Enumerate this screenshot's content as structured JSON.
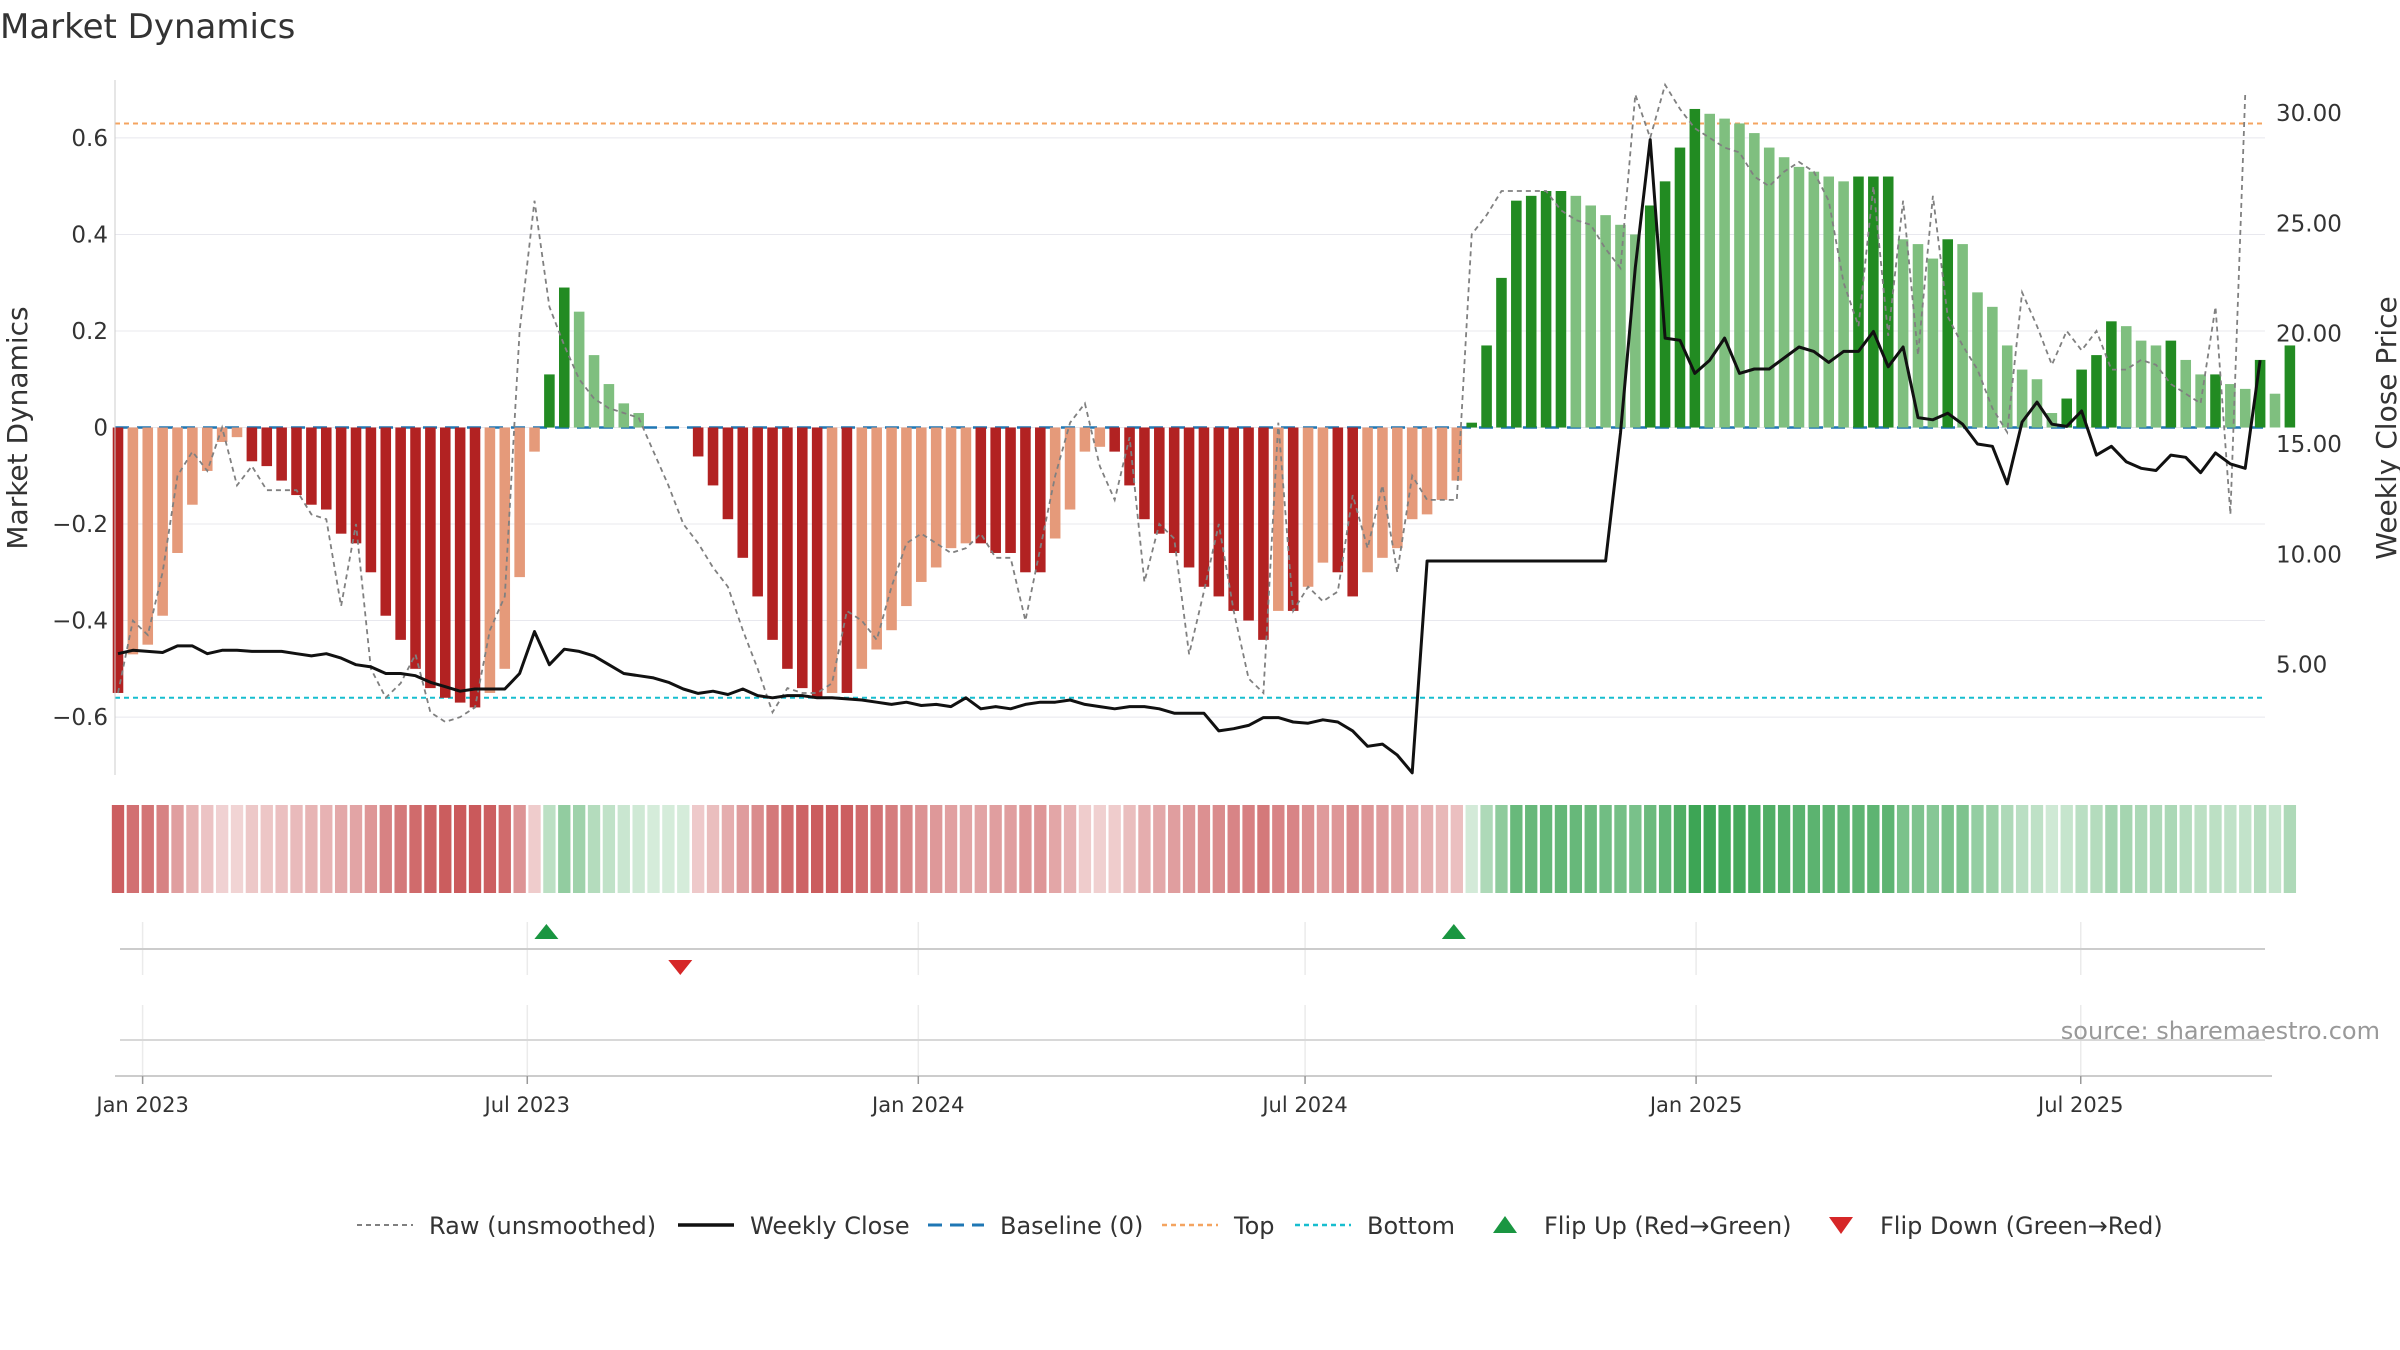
{
  "chart_data": {
    "type": "bar",
    "title": "Market Dynamics",
    "ylabel_left": "Market Dynamics",
    "ylabel_right": "Weekly Close Price",
    "ylim_left": [
      -0.72,
      0.72
    ],
    "ylim_right": [
      0,
      31.5
    ],
    "yticks_left": [
      "0.6",
      "0.4",
      "0.2",
      "0",
      "−0.2",
      "−0.4",
      "−0.6"
    ],
    "yticks_right": [
      "30.00",
      "25.00",
      "20.00",
      "15.00",
      "10.00",
      "5.00"
    ],
    "x_start": "2022-12-19",
    "x_end": "2025-09-29",
    "x_ticks": [
      {
        "date": "2023-01-01",
        "label": "Jan 2023"
      },
      {
        "date": "2023-07-01",
        "label": "Jul 2023"
      },
      {
        "date": "2024-01-01",
        "label": "Jan 2024"
      },
      {
        "date": "2024-07-01",
        "label": "Jul 2024"
      },
      {
        "date": "2025-01-01",
        "label": "Jan 2025"
      },
      {
        "date": "2025-07-01",
        "label": "Jul 2025"
      }
    ],
    "top_line": 0.63,
    "bottom_line": -0.56,
    "baseline": 0,
    "momentum": [
      -0.55,
      -0.47,
      -0.45,
      -0.39,
      -0.26,
      -0.16,
      -0.09,
      -0.03,
      -0.02,
      -0.07,
      -0.08,
      -0.11,
      -0.14,
      -0.16,
      -0.17,
      -0.22,
      -0.24,
      -0.3,
      -0.39,
      -0.44,
      -0.5,
      -0.54,
      -0.56,
      -0.57,
      -0.58,
      -0.55,
      -0.5,
      -0.31,
      -0.05,
      0.11,
      0.29,
      0.24,
      0.15,
      0.09,
      0.05,
      0.03,
      0.0,
      0.0,
      0.0,
      -0.06,
      -0.12,
      -0.19,
      -0.27,
      -0.35,
      -0.44,
      -0.5,
      -0.54,
      -0.56,
      -0.55,
      -0.55,
      -0.5,
      -0.46,
      -0.42,
      -0.37,
      -0.32,
      -0.29,
      -0.25,
      -0.24,
      -0.24,
      -0.26,
      -0.26,
      -0.3,
      -0.3,
      -0.23,
      -0.17,
      -0.05,
      -0.04,
      -0.05,
      -0.12,
      -0.19,
      -0.22,
      -0.26,
      -0.29,
      -0.33,
      -0.35,
      -0.38,
      -0.4,
      -0.44,
      -0.38,
      -0.38,
      -0.33,
      -0.28,
      -0.3,
      -0.35,
      -0.3,
      -0.27,
      -0.25,
      -0.19,
      -0.18,
      -0.15,
      -0.11,
      0.01,
      0.17,
      0.31,
      0.47,
      0.48,
      0.49,
      0.49,
      0.48,
      0.46,
      0.44,
      0.42,
      0.4,
      0.46,
      0.51,
      0.58,
      0.66,
      0.65,
      0.64,
      0.63,
      0.61,
      0.58,
      0.56,
      0.54,
      0.53,
      0.52,
      0.51,
      0.52,
      0.52,
      0.52,
      0.39,
      0.38,
      0.35,
      0.39,
      0.38,
      0.28,
      0.25,
      0.17,
      0.12,
      0.1,
      0.03,
      0.06,
      0.12,
      0.15,
      0.22,
      0.21,
      0.18,
      0.17,
      0.18,
      0.14,
      0.11,
      0.11,
      0.09,
      0.08,
      0.14,
      0.07,
      0.17
    ],
    "raw": [
      -0.55,
      -0.4,
      -0.43,
      -0.3,
      -0.1,
      -0.05,
      -0.09,
      0.0,
      -0.12,
      -0.08,
      -0.13,
      -0.13,
      -0.13,
      -0.18,
      -0.19,
      -0.37,
      -0.2,
      -0.5,
      -0.56,
      -0.53,
      -0.47,
      -0.59,
      -0.61,
      -0.6,
      -0.58,
      -0.42,
      -0.35,
      0.2,
      0.47,
      0.25,
      0.17,
      0.1,
      0.06,
      0.04,
      0.03,
      0.02,
      -0.05,
      -0.12,
      -0.2,
      -0.24,
      -0.29,
      -0.33,
      -0.42,
      -0.5,
      -0.59,
      -0.54,
      -0.55,
      -0.55,
      -0.53,
      -0.38,
      -0.4,
      -0.44,
      -0.33,
      -0.24,
      -0.22,
      -0.24,
      -0.26,
      -0.25,
      -0.22,
      -0.27,
      -0.27,
      -0.4,
      -0.25,
      -0.1,
      0.01,
      0.05,
      -0.08,
      -0.15,
      -0.02,
      -0.32,
      -0.2,
      -0.23,
      -0.47,
      -0.34,
      -0.2,
      -0.38,
      -0.52,
      -0.55,
      0.01,
      -0.38,
      -0.33,
      -0.36,
      -0.34,
      -0.14,
      -0.25,
      -0.12,
      -0.3,
      -0.1,
      -0.15,
      -0.15,
      -0.15,
      0.4,
      0.44,
      0.49,
      0.49,
      0.49,
      0.49,
      0.45,
      0.43,
      0.42,
      0.37,
      0.33,
      0.69,
      0.6,
      0.71,
      0.66,
      0.62,
      0.6,
      0.58,
      0.57,
      0.52,
      0.5,
      0.53,
      0.55,
      0.53,
      0.47,
      0.3,
      0.21,
      0.5,
      0.19,
      0.47,
      0.15,
      0.48,
      0.23,
      0.17,
      0.12,
      0.04,
      -0.01,
      0.28,
      0.21,
      0.13,
      0.2,
      0.16,
      0.2,
      0.12,
      0.12,
      0.14,
      0.13,
      0.09,
      0.07,
      0.05,
      0.25,
      -0.18,
      0.69
    ],
    "weekly_close": [
      5.5,
      5.65,
      5.6,
      5.55,
      5.85,
      5.85,
      5.5,
      5.65,
      5.65,
      5.6,
      5.6,
      5.6,
      5.5,
      5.4,
      5.5,
      5.3,
      5.0,
      4.9,
      4.6,
      4.6,
      4.5,
      4.2,
      4.0,
      3.8,
      3.9,
      3.9,
      3.9,
      4.6,
      6.5,
      5.0,
      5.7,
      5.6,
      5.4,
      5.0,
      4.6,
      4.5,
      4.4,
      4.2,
      3.9,
      3.7,
      3.8,
      3.65,
      3.9,
      3.6,
      3.5,
      3.6,
      3.6,
      3.5,
      3.5,
      3.45,
      3.4,
      3.3,
      3.2,
      3.3,
      3.15,
      3.2,
      3.1,
      3.5,
      3.0,
      3.1,
      3.0,
      3.2,
      3.3,
      3.3,
      3.4,
      3.2,
      3.1,
      3.0,
      3.1,
      3.1,
      3.0,
      2.8,
      2.8,
      2.8,
      2.0,
      2.1,
      2.25,
      2.6,
      2.6,
      2.4,
      2.35,
      2.5,
      2.4,
      2.0,
      1.3,
      1.4,
      0.9,
      0.1,
      9.7,
      9.7,
      9.7,
      9.7,
      9.7,
      9.7,
      9.7,
      9.7,
      9.7,
      9.7,
      9.7,
      9.7,
      9.7,
      15.5,
      23.0,
      28.8,
      19.8,
      19.7,
      18.2,
      18.8,
      19.8,
      18.2,
      18.4,
      18.4,
      18.9,
      19.4,
      19.2,
      18.7,
      19.2,
      19.2,
      20.1,
      18.5,
      19.4,
      16.2,
      16.1,
      16.4,
      15.9,
      15.0,
      14.9,
      13.2,
      16.0,
      16.9,
      15.9,
      15.8,
      16.5,
      14.5,
      14.9,
      14.2,
      13.9,
      13.8,
      14.5,
      14.4,
      13.7,
      14.6,
      14.1,
      13.9,
      18.8
    ]
  },
  "colors": {
    "bar_dark_red": "#b22222",
    "bar_light_red": "#e59a7a",
    "bar_dark_green": "#228b22",
    "bar_light_green": "#7fbf7f",
    "raw_line": "#808080",
    "close_line": "#111111",
    "baseline": "#1f77b4",
    "top_line": "#f4a460",
    "bottom_line": "#17becf",
    "flip_up": "#1a9641",
    "flip_down": "#d62728",
    "strip_red": "#c0393b",
    "strip_green": "#2e9e48"
  },
  "flips": {
    "up": [
      "2023-07-10",
      "2024-09-09"
    ],
    "down": [
      "2023-09-11"
    ]
  },
  "source": "source: sharemaestro.com",
  "legend": [
    {
      "key": "raw",
      "label": "Raw (unsmoothed)"
    },
    {
      "key": "close",
      "label": "Weekly Close"
    },
    {
      "key": "baseline",
      "label": "Baseline (0)"
    },
    {
      "key": "top",
      "label": "Top"
    },
    {
      "key": "bottom",
      "label": "Bottom"
    },
    {
      "key": "flip_up",
      "label": "Flip Up (Red→Green)"
    },
    {
      "key": "flip_down",
      "label": "Flip Down (Green→Red)"
    }
  ]
}
